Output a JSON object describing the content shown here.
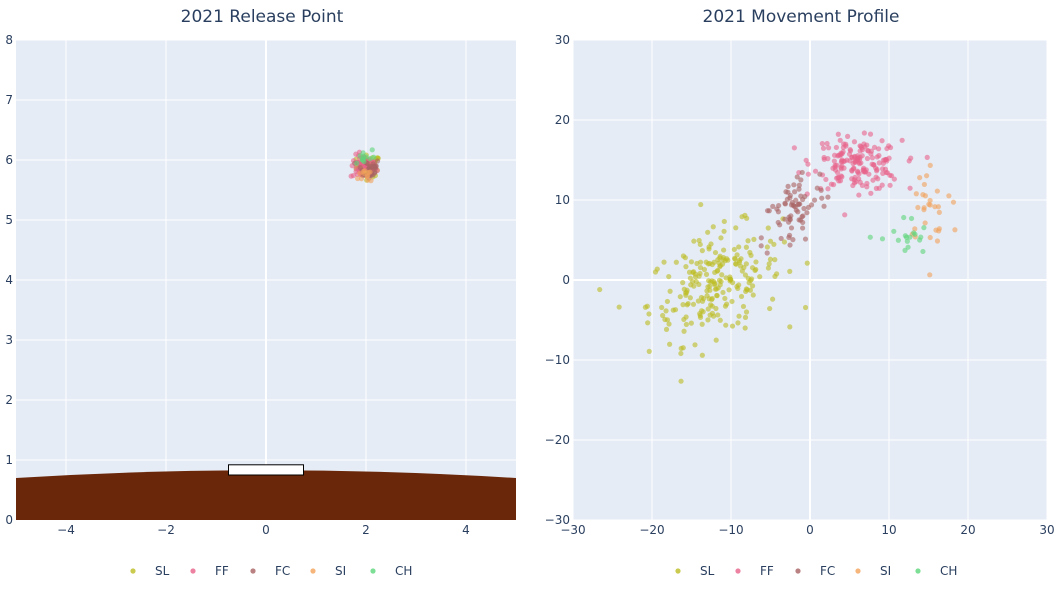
{
  "colors": {
    "SL": "#bcbd22",
    "FF": "#e7628a",
    "FC": "#a86262",
    "SI": "#f2a25a",
    "CH": "#5dd67a",
    "plot_bg": "#e5ecf6",
    "mound": "#6b2709",
    "rubber": "#ffffff"
  },
  "legend": [
    "SL",
    "FF",
    "FC",
    "SI",
    "CH"
  ],
  "chart_data": [
    {
      "type": "scatter",
      "title": "2021 Release Point",
      "xlim": [
        -5,
        5
      ],
      "ylim": [
        0,
        8
      ],
      "xticks": [
        -4,
        -2,
        0,
        2,
        4
      ],
      "yticks": [
        0,
        1,
        2,
        3,
        4,
        5,
        6,
        7,
        8
      ],
      "xtick_labels": [
        "−4",
        "−2",
        "0",
        "2",
        "4"
      ],
      "ytick_labels": [
        "0",
        "1",
        "2",
        "3",
        "4",
        "5",
        "6",
        "7",
        "8"
      ],
      "grid": true,
      "legend_position": "bottom",
      "mound": {
        "edge_height": 0.7,
        "peak_height": 0.83
      },
      "rubber": {
        "x": [
          -0.75,
          0.75
        ],
        "y": [
          0.75,
          0.92
        ]
      },
      "series": [
        {
          "name": "SL",
          "center": [
            2.05,
            5.9
          ],
          "spread": [
            0.12,
            0.09
          ],
          "count": 60
        },
        {
          "name": "FF",
          "center": [
            1.95,
            5.88
          ],
          "spread": [
            0.13,
            0.1
          ],
          "count": 60
        },
        {
          "name": "FC",
          "center": [
            2.05,
            5.85
          ],
          "spread": [
            0.12,
            0.09
          ],
          "count": 30
        },
        {
          "name": "SI",
          "center": [
            2.05,
            5.75
          ],
          "spread": [
            0.1,
            0.07
          ],
          "count": 12
        },
        {
          "name": "CH",
          "center": [
            1.95,
            6.05
          ],
          "spread": [
            0.12,
            0.08
          ],
          "count": 12
        }
      ]
    },
    {
      "type": "scatter",
      "title": "2021 Movement Profile",
      "xlim": [
        -30,
        30
      ],
      "ylim": [
        -30,
        30
      ],
      "xticks": [
        -30,
        -20,
        -10,
        0,
        10,
        20,
        30
      ],
      "yticks": [
        -30,
        -20,
        -10,
        0,
        10,
        20,
        30
      ],
      "xtick_labels": [
        "−30",
        "−20",
        "−10",
        "0",
        "10",
        "20",
        "30"
      ],
      "ytick_labels": [
        "−30",
        "−20",
        "−10",
        "0",
        "10",
        "20",
        "30"
      ],
      "grid": true,
      "legend_position": "bottom",
      "series": [
        {
          "name": "SL",
          "center": [
            -12,
            -0.5
          ],
          "spread": [
            4.2,
            3.2
          ],
          "count": 230,
          "tilt": 0.3
        },
        {
          "name": "FF",
          "center": [
            6,
            14.5
          ],
          "spread": [
            2.8,
            1.6
          ],
          "count": 170,
          "tilt": -0.05
        },
        {
          "name": "FC",
          "center": [
            -2,
            8.5
          ],
          "spread": [
            2.0,
            2.5
          ],
          "count": 70,
          "tilt": 0.8
        },
        {
          "name": "SI",
          "center": [
            15.5,
            9
          ],
          "spread": [
            1.8,
            3.0
          ],
          "count": 30,
          "tilt": -0.6
        },
        {
          "name": "CH",
          "center": [
            12,
            5
          ],
          "spread": [
            1.5,
            1.5
          ],
          "count": 18,
          "tilt": 0
        }
      ]
    }
  ]
}
